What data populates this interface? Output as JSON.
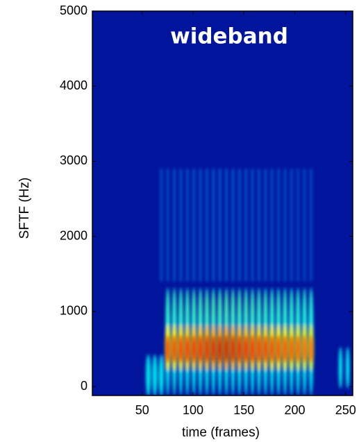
{
  "chart_data": {
    "type": "spectrogram",
    "title": "wideband",
    "x_label": "time (frames)",
    "y_label": "SFTF (Hz)",
    "xlim": [
      1,
      257
    ],
    "ylim": [
      -120,
      5000
    ],
    "xticks": [
      50,
      100,
      150,
      200,
      250
    ],
    "yticks": [
      0,
      1000,
      2000,
      3000,
      4000,
      5000
    ],
    "colormap": "jet"
  }
}
